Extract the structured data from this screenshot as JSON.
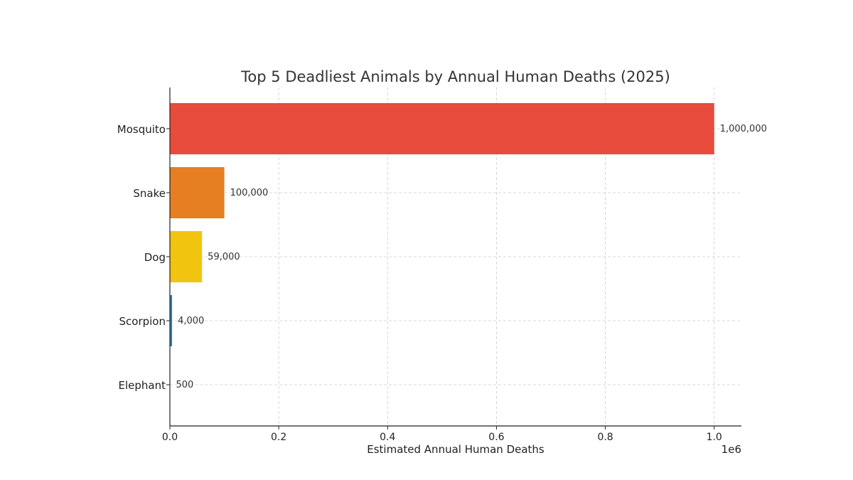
{
  "chart_data": {
    "type": "bar",
    "orientation": "horizontal",
    "title": "Top 5 Deadliest Animals by Annual Human Deaths (2025)",
    "xlabel": "Estimated Annual Human Deaths",
    "ylabel": "",
    "x_offset_label": "1e6",
    "categories": [
      "Mosquito",
      "Snake",
      "Dog",
      "Scorpion",
      "Elephant"
    ],
    "values": [
      1000000,
      100000,
      59000,
      4000,
      500
    ],
    "data_labels": [
      "1,000,000",
      "100,000",
      "59,000",
      "4,000",
      "500"
    ],
    "colors": [
      "#e74c3c",
      "#e67e22",
      "#f1c40f",
      "#2980b9",
      "#7f8c8d"
    ],
    "xlim": [
      0,
      1050000
    ],
    "xticks": [
      0,
      200000,
      400000,
      600000,
      800000,
      1000000
    ],
    "xtick_labels": [
      "0.0",
      "0.2",
      "0.4",
      "0.6",
      "0.8",
      "1.0"
    ],
    "grid": true,
    "grid_style": "dashed"
  }
}
